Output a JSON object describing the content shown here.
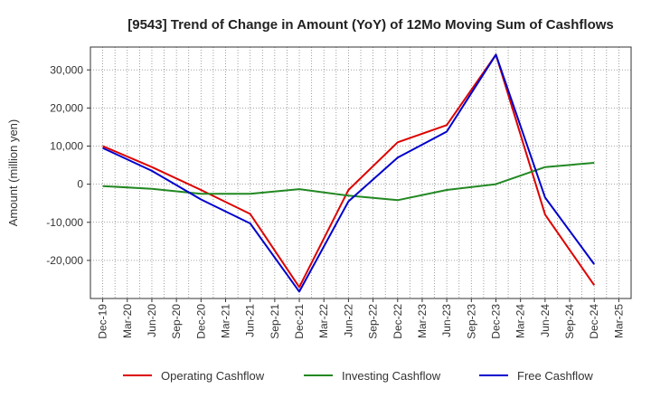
{
  "chart_data": {
    "type": "line",
    "title": "[9543]  Trend of Change in Amount (YoY) of 12Mo Moving Sum of Cashflows",
    "xlabel": "",
    "ylabel": "Amount (million yen)",
    "ylim": [
      -30000,
      36000
    ],
    "y_ticks": [
      -20000,
      -10000,
      0,
      10000,
      20000,
      30000
    ],
    "y_tick_labels": [
      "-20,000",
      "-10,000",
      "0",
      "10,000",
      "20,000",
      "30,000"
    ],
    "x_tick_labels": [
      "Dec-19",
      "Mar-20",
      "Jun-20",
      "Sep-20",
      "Dec-20",
      "Mar-21",
      "Jun-21",
      "Sep-21",
      "Dec-21",
      "Mar-22",
      "Jun-22",
      "Sep-22",
      "Dec-22",
      "Mar-23",
      "Jun-23",
      "Sep-23",
      "Dec-23",
      "Mar-24",
      "Jun-24",
      "Sep-24",
      "Dec-24",
      "Mar-25"
    ],
    "grid": true,
    "legend_position": "bottom",
    "series": [
      {
        "name": "Operating Cashflow",
        "color": "#dd0000",
        "points": [
          [
            0,
            10000
          ],
          [
            2,
            4500
          ],
          [
            4,
            -1500
          ],
          [
            6,
            -7800
          ],
          [
            8,
            -27000
          ],
          [
            10,
            -1500
          ],
          [
            12,
            11000
          ],
          [
            14,
            15500
          ],
          [
            16,
            34000
          ],
          [
            18,
            -8000
          ],
          [
            20,
            -26500
          ]
        ]
      },
      {
        "name": "Investing Cashflow",
        "color": "#228822",
        "points": [
          [
            0,
            -500
          ],
          [
            2,
            -1200
          ],
          [
            4,
            -2500
          ],
          [
            6,
            -2500
          ],
          [
            8,
            -1300
          ],
          [
            10,
            -3000
          ],
          [
            12,
            -4200
          ],
          [
            14,
            -1500
          ],
          [
            16,
            0
          ],
          [
            18,
            4500
          ],
          [
            20,
            5600
          ]
        ]
      },
      {
        "name": "Free Cashflow",
        "color": "#0000cc",
        "points": [
          [
            0,
            9500
          ],
          [
            2,
            3500
          ],
          [
            4,
            -4000
          ],
          [
            6,
            -10300
          ],
          [
            8,
            -28200
          ],
          [
            10,
            -4500
          ],
          [
            12,
            7000
          ],
          [
            14,
            13800
          ],
          [
            16,
            34000
          ],
          [
            18,
            -3500
          ],
          [
            20,
            -21000
          ]
        ]
      }
    ]
  }
}
